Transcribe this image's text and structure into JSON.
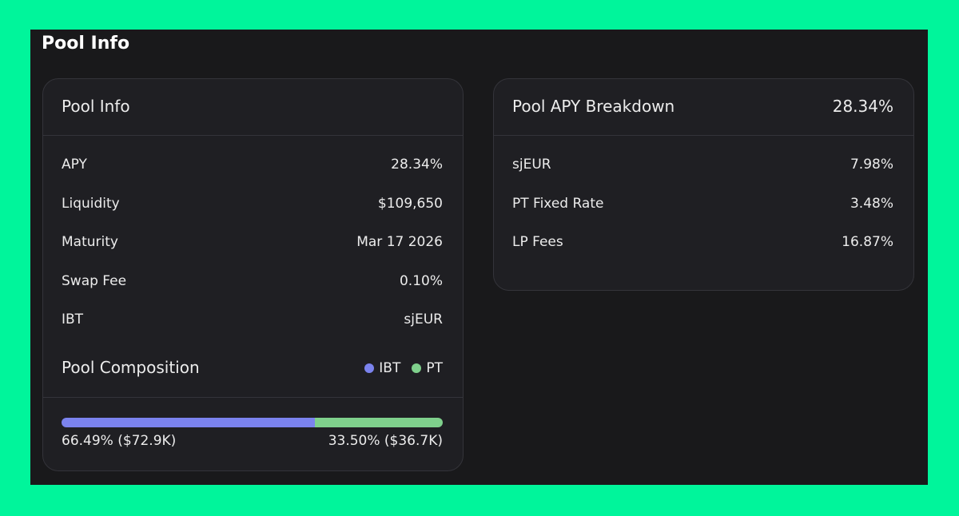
{
  "page_title": "Pool Info",
  "pool_info": {
    "title": "Pool Info",
    "rows": [
      {
        "label": "APY",
        "value": "28.34%"
      },
      {
        "label": "Liquidity",
        "value": "$109,650"
      },
      {
        "label": "Maturity",
        "value": "Mar 17 2026"
      },
      {
        "label": "Swap Fee",
        "value": "0.10%"
      },
      {
        "label": "IBT",
        "value": "sjEUR"
      }
    ],
    "composition": {
      "title": "Pool Composition",
      "segments": [
        {
          "name": "IBT",
          "color": "#7b83ee",
          "value": 66.49,
          "label": "66.49% ($72.9K)"
        },
        {
          "name": "PT",
          "color": "#7fd08c",
          "value": 33.5,
          "label": "33.50% ($36.7K)"
        }
      ]
    }
  },
  "apy_breakdown": {
    "title": "Pool APY Breakdown",
    "total": "28.34%",
    "rows": [
      {
        "label": "sjEUR",
        "value": "7.98%"
      },
      {
        "label": "PT Fixed Rate",
        "value": "3.48%"
      },
      {
        "label": "LP Fees",
        "value": "16.87%"
      }
    ]
  }
}
